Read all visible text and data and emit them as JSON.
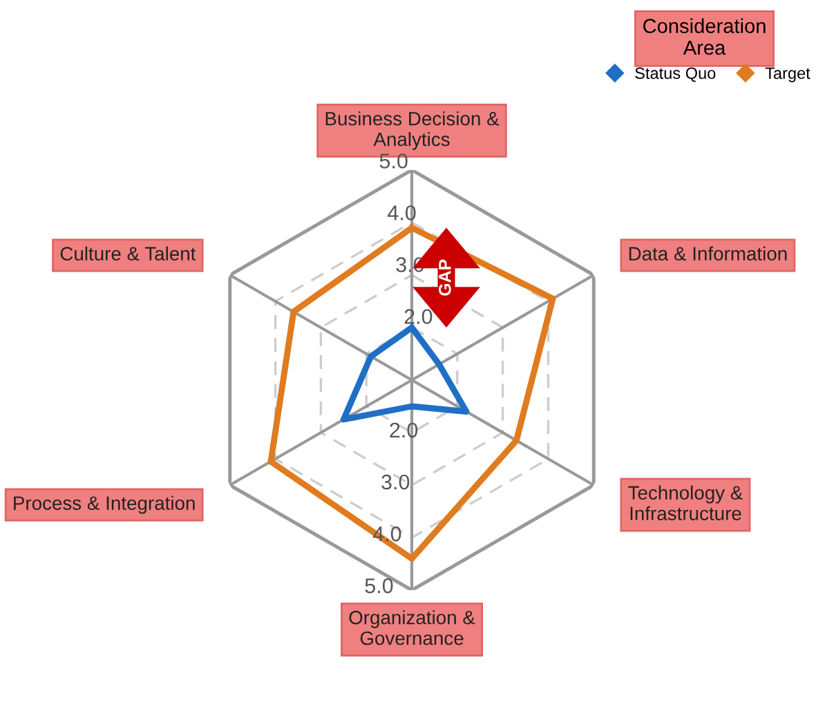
{
  "chart_data": {
    "type": "radar",
    "categories": [
      "Business Decision &\nAnalytics",
      "Data & Information",
      "Technology &\nInfrastructure",
      "Organization &\nGovernance",
      "Process & Integration",
      "Culture & Talent"
    ],
    "series": [
      {
        "name": "Status Quo",
        "color": "#1f6fc5",
        "values": [
          2.0,
          1.6,
          2.2,
          1.5,
          2.5,
          1.9
        ]
      },
      {
        "name": "Target",
        "color": "#e07b1f",
        "values": [
          3.9,
          4.1,
          3.3,
          4.4,
          4.1,
          3.6
        ]
      }
    ],
    "ylim": [
      1,
      5
    ],
    "yticks": [
      {
        "value": 2,
        "label": "2.0"
      },
      {
        "value": 3,
        "label": "3.0"
      },
      {
        "value": 4,
        "label": "4.0"
      },
      {
        "value": 5,
        "label": "5.0"
      }
    ],
    "legend_title": "Consideration\nArea",
    "legend": "top right",
    "marker": "diamond",
    "line_style": "solid",
    "grid": true,
    "annotations": [
      {
        "text": "GAP",
        "x": "Business Decision &\nAnalytics"
      }
    ]
  }
}
